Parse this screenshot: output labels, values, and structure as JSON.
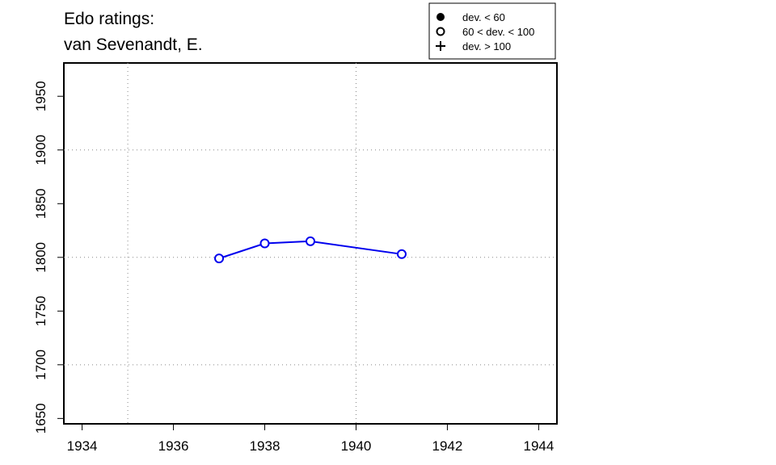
{
  "chart_data": {
    "type": "line",
    "title": [
      "Edo ratings:",
      "van Sevenandt, E."
    ],
    "x": [
      1937,
      1938,
      1939,
      1941
    ],
    "series": [
      {
        "name": "60 < dev. < 100",
        "color": "#0000ee",
        "values": [
          1799,
          1813,
          1815,
          1803
        ]
      }
    ],
    "legend": [
      "dev. < 60",
      "60 < dev. < 100",
      "dev. > 100"
    ],
    "legend_position": "top-right",
    "xlim": [
      1933.6,
      1944.4
    ],
    "xticks": [
      1934,
      1936,
      1938,
      1940,
      1942,
      1944
    ],
    "ylim": [
      1645,
      1981
    ],
    "yticks": [
      1650,
      1700,
      1750,
      1800,
      1850,
      1900,
      1950
    ],
    "xgrid": [
      1935,
      1940
    ],
    "ygrid": [
      1700,
      1800,
      1900
    ]
  }
}
